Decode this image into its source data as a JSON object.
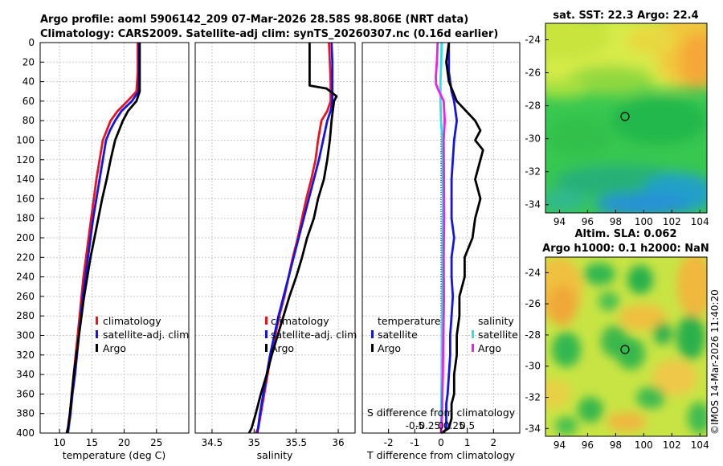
{
  "title": {
    "line1": "Argo profile: aoml 5906142_209 07-Mar-2026 28.58S 98.806E (NRT data)",
    "line2": "Climatology: CARS2009. Satellite-adj clim: synTS_20260307.nc (0.16d earlier)"
  },
  "colors": {
    "climatology": "#e8141e",
    "satellite": "#1414e6",
    "argo": "#000000",
    "sat_salinity": "#30e0e8",
    "argo_salinity": "#f020e8"
  },
  "chart_data": [
    {
      "type": "line",
      "name": "temperature-profile",
      "xlabel": "temperature (deg C)",
      "xlim": [
        7,
        30
      ],
      "ylim": [
        400,
        0
      ],
      "xticks": [
        10,
        15,
        20,
        25
      ],
      "yticks": [
        0,
        20,
        40,
        60,
        80,
        100,
        120,
        140,
        160,
        180,
        200,
        220,
        240,
        260,
        280,
        300,
        320,
        340,
        360,
        380,
        400
      ],
      "grid": true,
      "legend": [
        "climatology",
        "satellite-adj. clim",
        "Argo"
      ],
      "series": [
        {
          "name": "climatology",
          "color": "#e8141e",
          "x": [
            22.1,
            22.1,
            21.9,
            20.5,
            19.0,
            17.9,
            17.3,
            16.7,
            16.2,
            15.7,
            15.3,
            14.9,
            14.5,
            14.1,
            13.7,
            13.4,
            13.1,
            12.8,
            12.5,
            12.2,
            11.9,
            11.6,
            11.3,
            11.1
          ],
          "depth": [
            0,
            30,
            50,
            60,
            70,
            80,
            90,
            100,
            120,
            140,
            160,
            180,
            200,
            220,
            240,
            260,
            280,
            300,
            320,
            340,
            360,
            380,
            395,
            400
          ]
        },
        {
          "name": "satellite-adj. clim",
          "color": "#1414e6",
          "x": [
            22.3,
            22.3,
            22.2,
            21.2,
            19.6,
            18.6,
            17.8,
            17.2,
            16.7,
            16.2,
            15.7,
            15.2,
            14.8,
            14.4,
            14.0,
            13.6,
            13.3,
            13.0,
            12.7,
            12.4,
            12.0,
            11.7,
            11.4,
            11.3
          ],
          "depth": [
            0,
            30,
            50,
            60,
            70,
            80,
            90,
            100,
            120,
            140,
            160,
            180,
            200,
            220,
            240,
            260,
            280,
            300,
            320,
            340,
            360,
            380,
            395,
            400
          ]
        },
        {
          "name": "Argo",
          "color": "#000000",
          "x": [
            22.4,
            22.4,
            22.4,
            21.9,
            20.6,
            19.8,
            19.2,
            18.6,
            17.9,
            17.3,
            16.6,
            16.0,
            15.4,
            14.8,
            14.3,
            13.8,
            13.4,
            13.0,
            12.6,
            12.2,
            11.9,
            11.6,
            11.3,
            11.1
          ],
          "depth": [
            0,
            30,
            50,
            60,
            70,
            80,
            90,
            100,
            120,
            140,
            160,
            180,
            200,
            220,
            240,
            260,
            280,
            300,
            320,
            340,
            360,
            380,
            395,
            400
          ]
        }
      ]
    },
    {
      "type": "line",
      "name": "salinity-profile",
      "xlabel": "salinity",
      "xlim": [
        34.3,
        36.2
      ],
      "ylim": [
        400,
        0
      ],
      "xticks": [
        34.5,
        35,
        35.5,
        36
      ],
      "grid": true,
      "legend": [
        "climatology",
        "satellite-adj. clim",
        "Argo"
      ],
      "series": [
        {
          "name": "climatology",
          "color": "#e8141e",
          "x": [
            35.89,
            35.9,
            35.91,
            35.91,
            35.87,
            35.8,
            35.76,
            35.73,
            35.68,
            35.62,
            35.57,
            35.52,
            35.46,
            35.41,
            35.36,
            35.3,
            35.25,
            35.2,
            35.16,
            35.12,
            35.08,
            35.05,
            35.02
          ],
          "depth": [
            0,
            20,
            40,
            60,
            70,
            80,
            100,
            120,
            140,
            160,
            180,
            200,
            220,
            240,
            260,
            280,
            300,
            320,
            340,
            360,
            380,
            395,
            400
          ]
        },
        {
          "name": "satellite-adj. clim",
          "color": "#1414e6",
          "x": [
            35.92,
            35.93,
            35.93,
            35.93,
            35.91,
            35.87,
            35.82,
            35.77,
            35.71,
            35.65,
            35.59,
            35.53,
            35.47,
            35.41,
            35.35,
            35.29,
            35.24,
            35.19,
            35.15,
            35.11,
            35.07,
            35.04
          ],
          "depth": [
            0,
            20,
            40,
            60,
            70,
            80,
            100,
            120,
            140,
            160,
            180,
            200,
            220,
            240,
            260,
            280,
            300,
            320,
            340,
            360,
            380,
            400
          ]
        },
        {
          "name": "Argo",
          "color": "#000000",
          "x": [
            35.66,
            35.66,
            35.66,
            35.66,
            35.86,
            35.98,
            35.95,
            35.92,
            35.9,
            35.87,
            35.83,
            35.76,
            35.71,
            35.63,
            35.57,
            35.5,
            35.42,
            35.35,
            35.28,
            35.21,
            35.15,
            35.08,
            35.02,
            34.97,
            34.94
          ],
          "depth": [
            0,
            20,
            40,
            44,
            47,
            55,
            60,
            80,
            100,
            120,
            140,
            160,
            180,
            200,
            220,
            240,
            260,
            280,
            300,
            320,
            340,
            360,
            380,
            395,
            400
          ]
        }
      ]
    },
    {
      "type": "line",
      "name": "difference-profile",
      "xlabel": "T difference from climatology",
      "xlabel2": "S difference from climatology",
      "xlim": [
        -3,
        3
      ],
      "ylim": [
        400,
        0
      ],
      "xticks": [
        -2,
        -1,
        0,
        1,
        2
      ],
      "xticks2": [
        -0.5,
        -0.25,
        0,
        0.25,
        0.5
      ],
      "xtick2_labels": [
        "-0.5",
        "-0.25",
        "0",
        "0.25",
        "0.5"
      ],
      "grid": true,
      "legend_left_title": "temperature",
      "legend_right_title": "salinity",
      "legend": [
        "satellite",
        "Argo",
        "satellite",
        "Argo"
      ],
      "series": [
        {
          "name": "T satellite",
          "color": "#1414e6",
          "x": [
            0.3,
            0.3,
            0.4,
            0.5,
            0.6,
            0.5,
            0.4,
            0.4,
            0.5,
            0.4,
            0.4,
            0.45,
            0.4,
            0.35,
            0.35,
            0.3,
            0.25,
            0.2,
            0.2,
            0.2,
            0.1
          ],
          "depth": [
            0,
            30,
            50,
            60,
            80,
            100,
            140,
            180,
            200,
            220,
            240,
            260,
            280,
            300,
            320,
            340,
            360,
            370,
            380,
            395,
            400
          ]
        },
        {
          "name": "T Argo",
          "color": "#000000",
          "x": [
            0.3,
            0.2,
            0.3,
            0.6,
            1.3,
            1.5,
            1.3,
            1.6,
            1.3,
            1.5,
            1.3,
            1.2,
            0.9,
            0.9,
            0.7,
            0.7,
            0.6,
            0.6,
            0.5,
            0.5,
            0.4,
            0.4,
            0.3,
            0.0
          ],
          "depth": [
            0,
            20,
            40,
            60,
            80,
            90,
            100,
            110,
            140,
            160,
            180,
            200,
            220,
            240,
            260,
            280,
            300,
            320,
            340,
            360,
            370,
            385,
            395,
            400
          ]
        },
        {
          "name": "S satellite",
          "color": "#30e0e8",
          "x": [
            0.02,
            0.01,
            -0.02,
            -0.02,
            0.0,
            0.05,
            0.06,
            0.06,
            0.08,
            0.07,
            0.06,
            0.05,
            0.06,
            0.05,
            0.04,
            0.03,
            0.02,
            0.01,
            0.0
          ],
          "depth": [
            0,
            20,
            40,
            60,
            80,
            100,
            120,
            140,
            160,
            180,
            200,
            220,
            240,
            260,
            280,
            300,
            340,
            380,
            400
          ]
        },
        {
          "name": "S Argo",
          "color": "#f020e8",
          "x": [
            -0.13,
            -0.16,
            -0.2,
            -0.19,
            -0.15,
            -0.13,
            0.1,
            0.14,
            0.1,
            0.11,
            0.12,
            0.1,
            0.11,
            0.1,
            0.09,
            0.08,
            0.07,
            0.05,
            0.04,
            0.0
          ],
          "depth": [
            0,
            20,
            35,
            43,
            45,
            47,
            60,
            80,
            100,
            140,
            180,
            220,
            260,
            280,
            300,
            320,
            340,
            360,
            380,
            400
          ]
        }
      ]
    },
    {
      "type": "heatmap",
      "name": "sst-map",
      "title": "sat. SST: 22.3 Argo: 22.4",
      "xlim": [
        93,
        104.5
      ],
      "ylim": [
        -34.5,
        -23
      ],
      "xticks": [
        94,
        96,
        98,
        100,
        102,
        104
      ],
      "yticks": [
        -24,
        -26,
        -28,
        -30,
        -32,
        -34
      ],
      "marker": {
        "lon": 98.806,
        "lat": -28.58
      }
    },
    {
      "type": "heatmap",
      "name": "sla-map",
      "title_line1": "Altim. SLA: 0.062",
      "title_line2": "Argo h1000: 0.1 h2000: NaN",
      "xlim": [
        93,
        104.5
      ],
      "ylim": [
        -34.5,
        -23
      ],
      "xticks": [
        94,
        96,
        98,
        100,
        102,
        104
      ],
      "yticks": [
        -24,
        -26,
        -28,
        -30,
        -32,
        -34
      ],
      "marker": {
        "lon": 98.806,
        "lat": -28.58
      }
    }
  ],
  "footer": {
    "credit": "©IMOS 14-Mar-2026 11:40:20"
  }
}
